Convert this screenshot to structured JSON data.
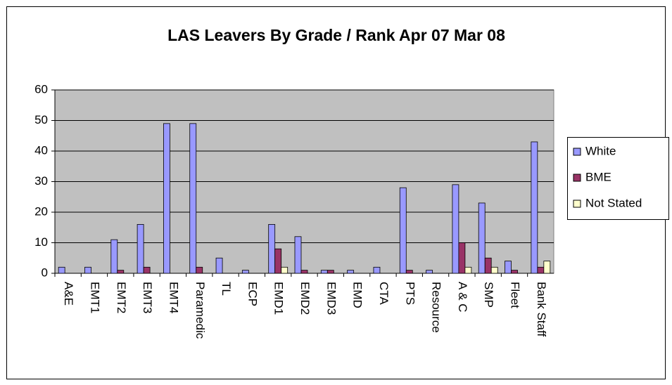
{
  "chart_data": {
    "type": "bar",
    "title": "LAS Leavers By Grade / Rank Apr 07 Mar 08",
    "categories": [
      "A&E",
      "EMT1",
      "EMT2",
      "EMT3",
      "EMT4",
      "Paramedic",
      "TL",
      "ECP",
      "EMD1",
      "EMD2",
      "EMD3",
      "EMD",
      "CTA",
      "PTS",
      "Resource",
      "A & C",
      "SMP",
      "Fleet",
      "Bank Staff"
    ],
    "series": [
      {
        "name": "White",
        "color": "#9999ff",
        "values": [
          2,
          2,
          11,
          16,
          49,
          49,
          5,
          1,
          16,
          12,
          1,
          1,
          2,
          28,
          1,
          29,
          23,
          4,
          43
        ]
      },
      {
        "name": "BME",
        "color": "#993366",
        "values": [
          0,
          0,
          1,
          2,
          0,
          2,
          0,
          0,
          8,
          1,
          1,
          0,
          0,
          1,
          0,
          10,
          5,
          1,
          2
        ]
      },
      {
        "name": "Not Stated",
        "color": "#ffffcc",
        "values": [
          0,
          0,
          0,
          0,
          0,
          0,
          0,
          0,
          2,
          0,
          0,
          0,
          0,
          0,
          0,
          2,
          2,
          0,
          4
        ]
      }
    ],
    "ylim": [
      0,
      60
    ],
    "yticks": [
      0,
      10,
      20,
      30,
      40,
      50,
      60
    ],
    "plot_background": "#c0c0c0",
    "legend": "right"
  }
}
